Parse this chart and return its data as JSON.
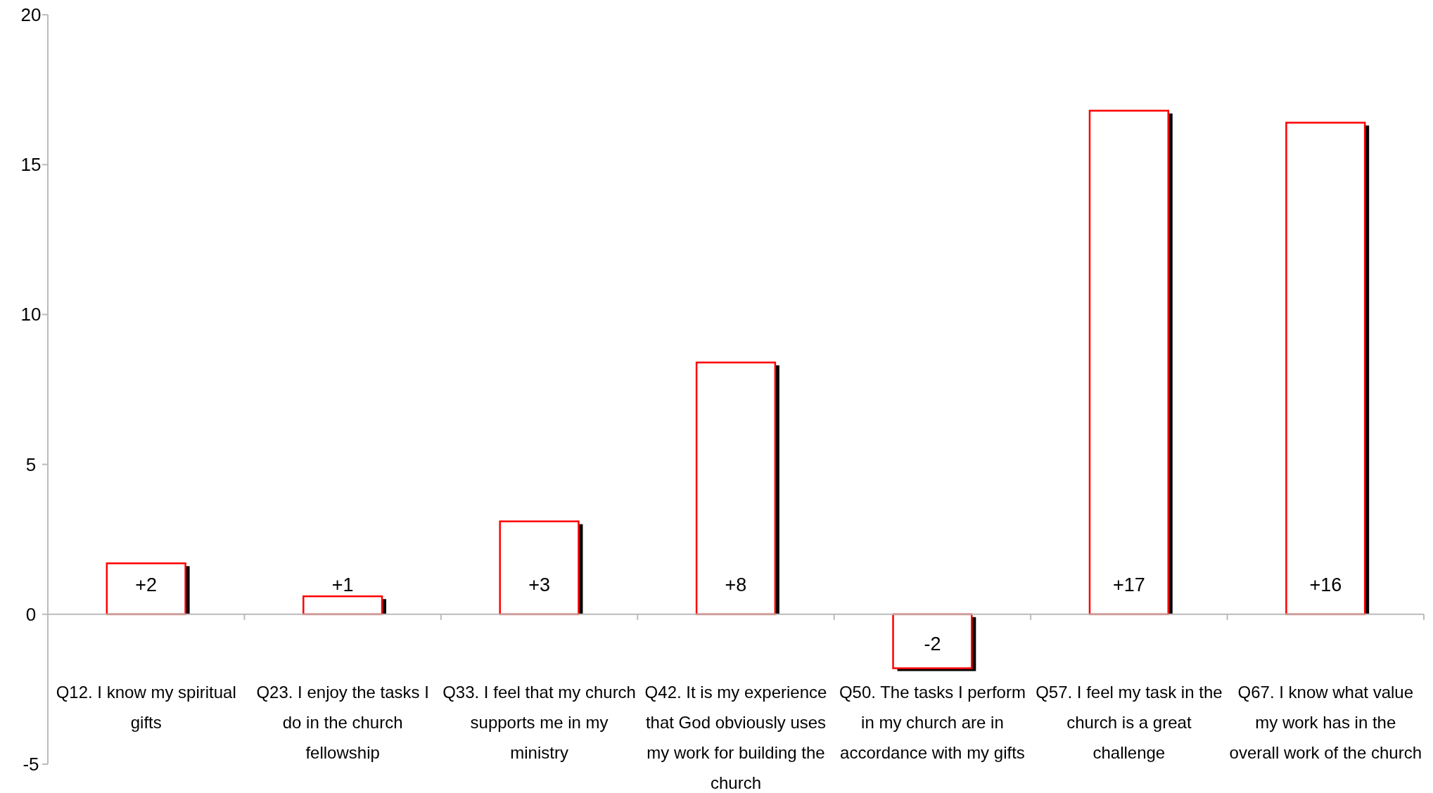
{
  "chart_data": {
    "type": "bar",
    "categories": [
      "Q12. I know my spiritual gifts",
      "Q23. I enjoy the tasks I do in the church fellowship",
      "Q33. I feel that my church supports me in my ministry",
      "Q42. It is my experience that God obviously uses my work for building the church",
      "Q50. The tasks I perform in my church are in accordance with my gifts",
      "Q57. I feel my task in the church is a great challenge",
      "Q67. I know what value my work has in the overall work of the church"
    ],
    "values": [
      1.7,
      0.6,
      3.1,
      8.4,
      -1.8,
      16.8,
      16.4
    ],
    "value_labels": [
      "+2",
      "+1",
      "+3",
      "+8",
      "-2",
      "+17",
      "+16"
    ],
    "color": "#ff0000",
    "ylim": [
      -5,
      20
    ],
    "yticks": [
      -5,
      0,
      5,
      10,
      15,
      20
    ]
  }
}
